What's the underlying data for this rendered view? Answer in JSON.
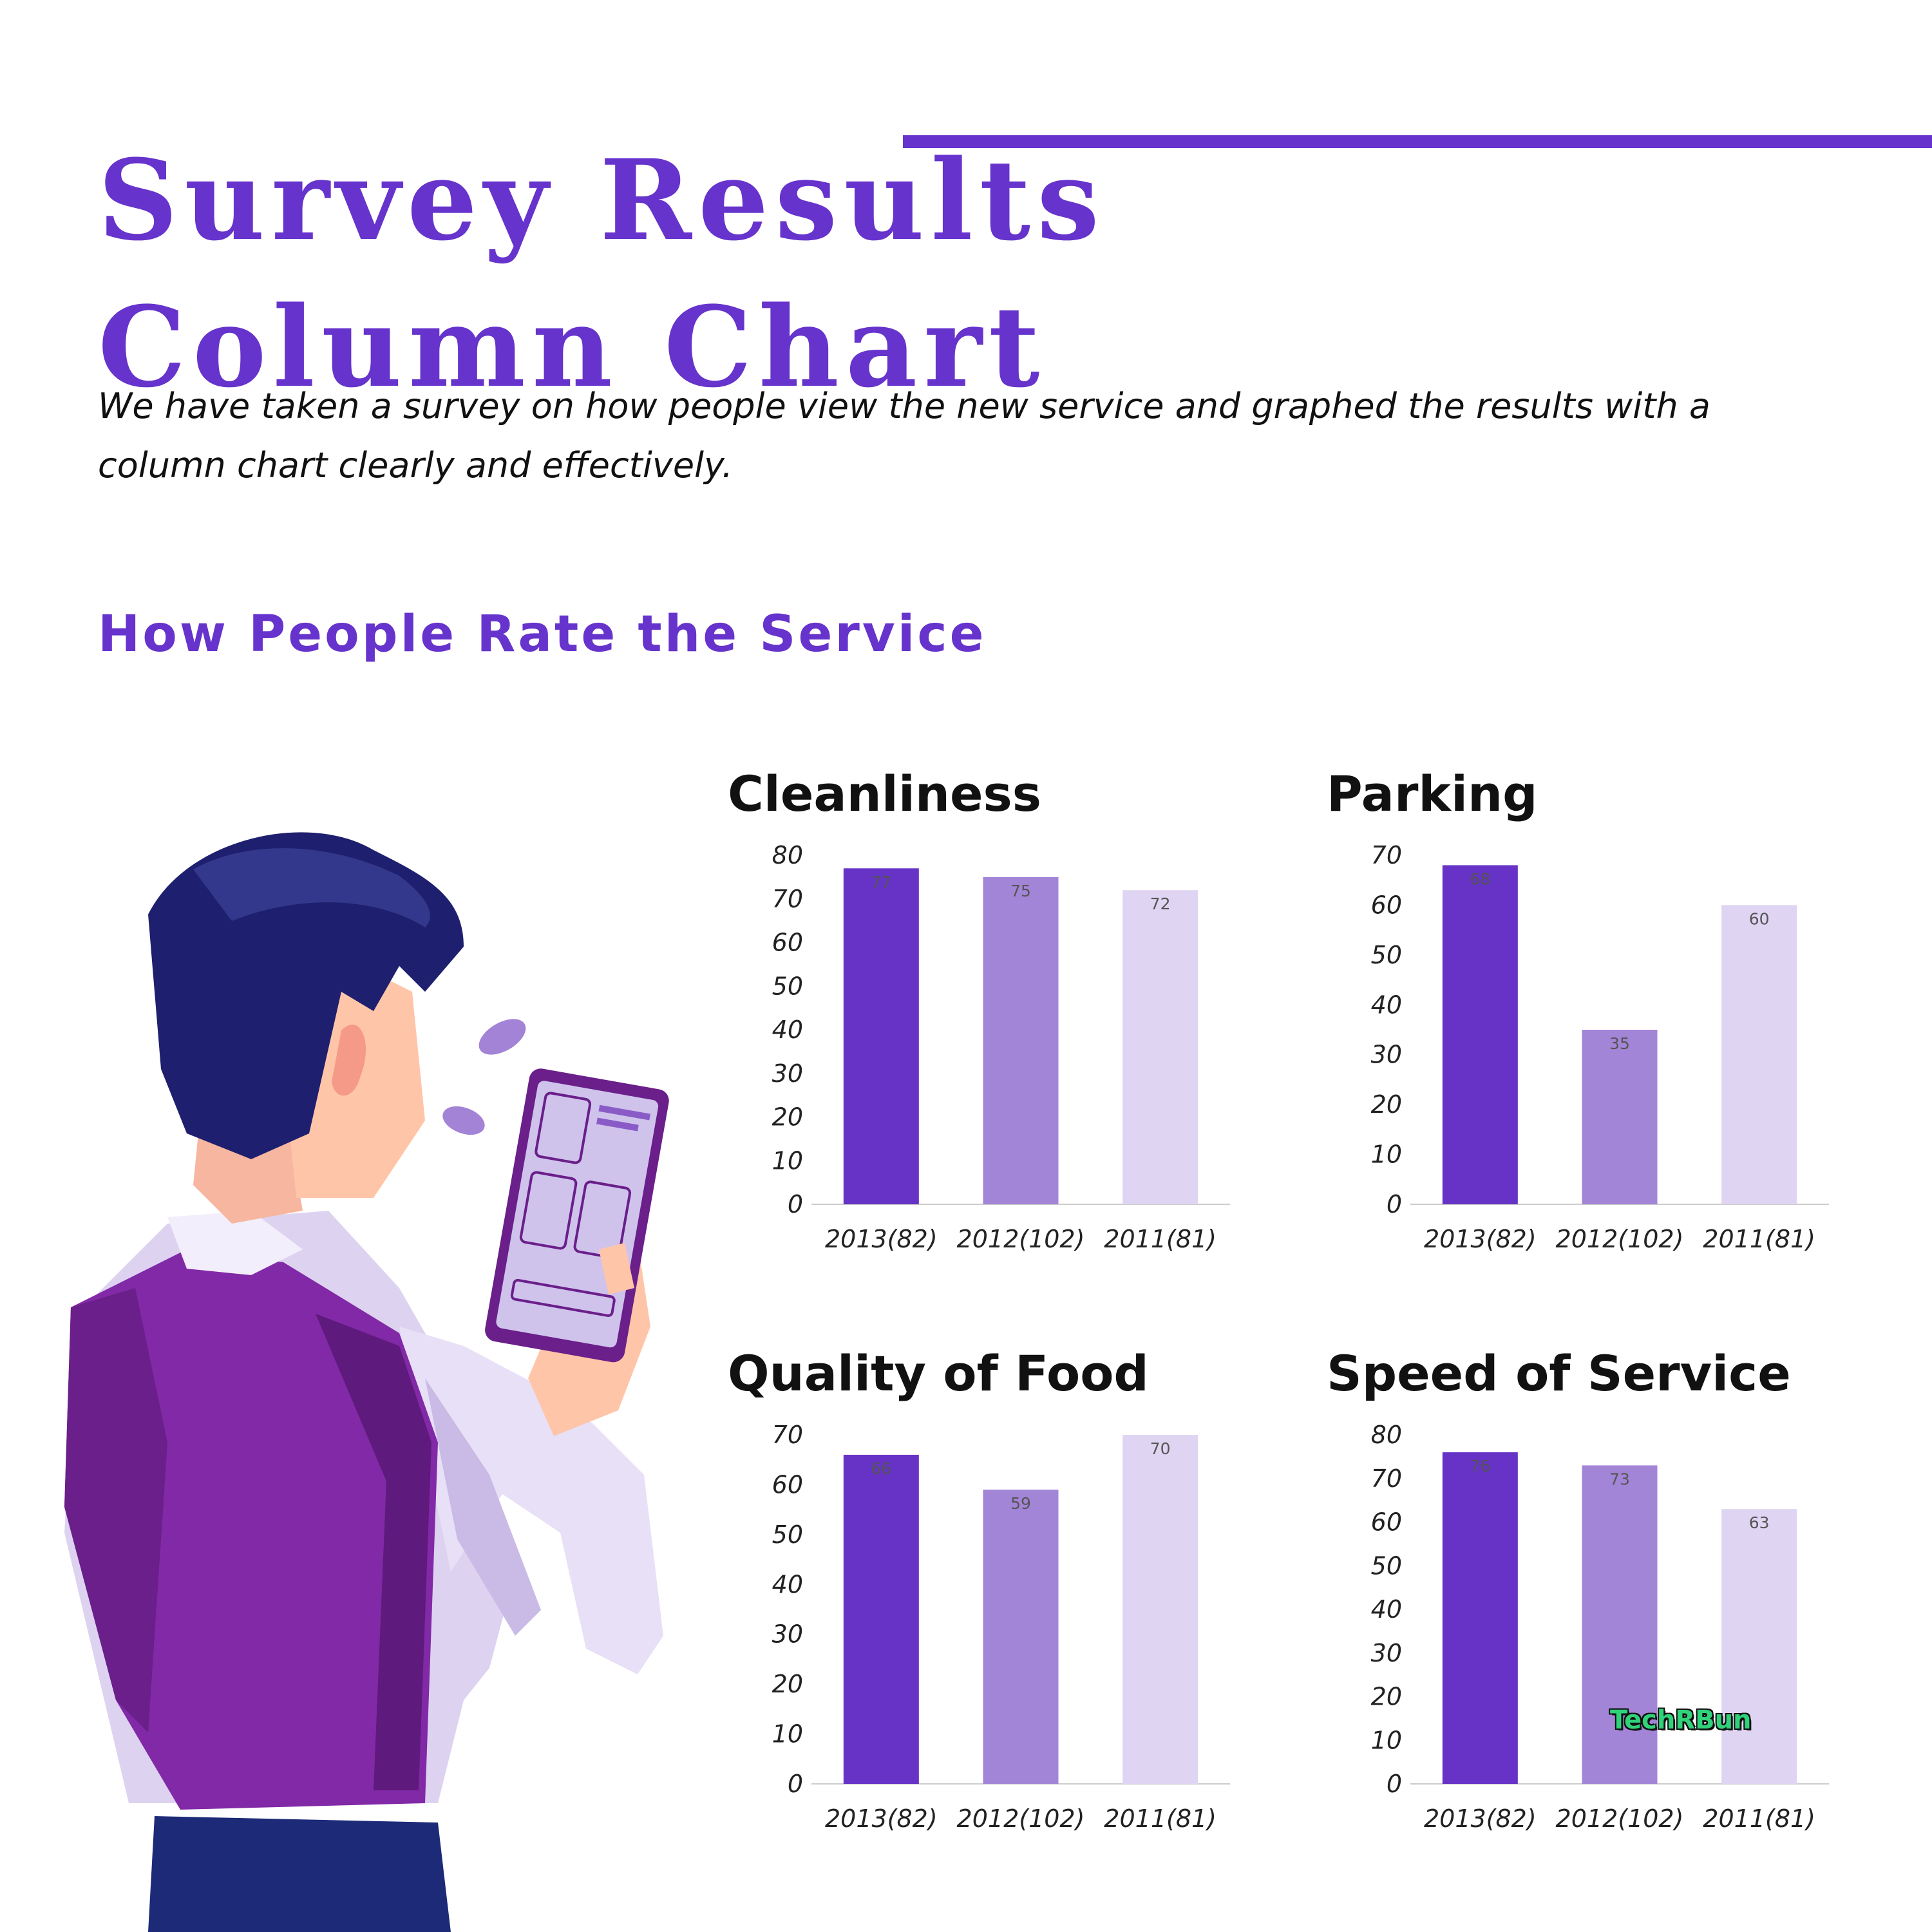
{
  "header": {
    "title_line1": "Survey Results",
    "title_line2": "Column Chart",
    "intro": "We have taken a survey on how people view the new service and graphed the results with a column chart clearly and effectively.",
    "section_heading": "How People Rate the Service"
  },
  "colors": {
    "accent": "#6633cc",
    "series": [
      "#6633c6",
      "#a385d8",
      "#dfd5f3"
    ],
    "axis": "#cccccc"
  },
  "chart_data": [
    {
      "type": "bar",
      "title": "Cleanliness",
      "categories": [
        "2013(82)",
        "2012(102)",
        "2011(81)"
      ],
      "values": [
        77,
        75,
        72
      ],
      "ylim": [
        0,
        80
      ],
      "yticks": [
        0,
        10,
        20,
        30,
        40,
        50,
        60,
        70,
        80
      ],
      "grid": false,
      "legend": "none"
    },
    {
      "type": "bar",
      "title": "Parking",
      "categories": [
        "2013(82)",
        "2012(102)",
        "2011(81)"
      ],
      "values": [
        68,
        35,
        60
      ],
      "ylim": [
        0,
        70
      ],
      "yticks": [
        0,
        10,
        20,
        30,
        40,
        50,
        60,
        70
      ],
      "grid": false,
      "legend": "none"
    },
    {
      "type": "bar",
      "title": "Quality of Food",
      "categories": [
        "2013(82)",
        "2012(102)",
        "2011(81)"
      ],
      "values": [
        66,
        59,
        70
      ],
      "ylim": [
        0,
        70
      ],
      "yticks": [
        0,
        10,
        20,
        30,
        40,
        50,
        60,
        70
      ],
      "grid": false,
      "legend": "none"
    },
    {
      "type": "bar",
      "title": "Speed of Service",
      "categories": [
        "2013(82)",
        "2012(102)",
        "2011(81)"
      ],
      "values": [
        76,
        73,
        63
      ],
      "ylim": [
        0,
        80
      ],
      "yticks": [
        0,
        10,
        20,
        30,
        40,
        50,
        60,
        70,
        80
      ],
      "grid": false,
      "legend": "none"
    }
  ],
  "watermark": "TechRBun"
}
